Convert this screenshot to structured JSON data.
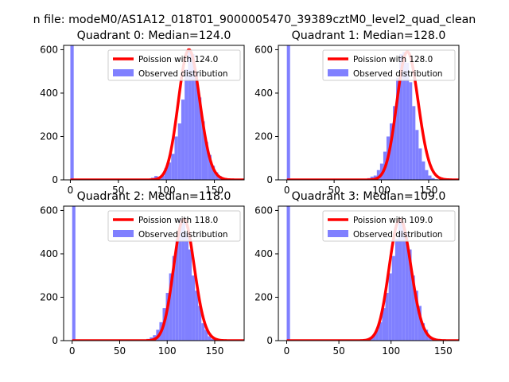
{
  "figure": {
    "suptitle": "n file: modeM0/AS1A12_018T01_9000005470_39389cztM0_level2_quad_clean"
  },
  "chart_data": [
    {
      "type": "bar",
      "title": "Quadrant 0: Median=124.0",
      "xlim": [
        -7,
        181
      ],
      "ylim": [
        0,
        620
      ],
      "xticks": [
        0,
        50,
        100,
        150
      ],
      "yticks": [
        0,
        200,
        400,
        600
      ],
      "legend_position": "top-right",
      "spike": {
        "x": 0,
        "value": 620
      },
      "bins": {
        "start": 0,
        "width": 3.5,
        "values": [
          620,
          0,
          0,
          0,
          0,
          0,
          0,
          0,
          0,
          0,
          0,
          0,
          0,
          0,
          0,
          0,
          0,
          0,
          0,
          0,
          0,
          0,
          1,
          2,
          10,
          18,
          10,
          20,
          55,
          80,
          120,
          200,
          260,
          370,
          510,
          600,
          580,
          500,
          380,
          270,
          175,
          115,
          65,
          35,
          18,
          5,
          5,
          3,
          1,
          0,
          0
        ]
      },
      "poisson": {
        "mean": 124.0
      },
      "series": [
        {
          "name": "Poission with 124.0",
          "color": "#ff0000"
        },
        {
          "name": "Observed distribution",
          "color": "#8080ff"
        }
      ]
    },
    {
      "type": "bar",
      "title": "Quadrant 1: Median=128.0",
      "xlim": [
        -9,
        182
      ],
      "ylim": [
        0,
        620
      ],
      "xticks": [
        0,
        50,
        100,
        150
      ],
      "yticks": [
        0,
        200,
        400,
        600
      ],
      "legend_position": "top-right",
      "spike": {
        "x": 0,
        "value": 620
      },
      "bins": {
        "start": 0,
        "width": 3.4,
        "values": [
          620,
          0,
          0,
          0,
          0,
          0,
          0,
          0,
          0,
          0,
          0,
          0,
          0,
          0,
          0,
          0,
          0,
          0,
          0,
          0,
          0,
          0,
          0,
          0,
          2,
          8,
          15,
          20,
          45,
          75,
          130,
          200,
          260,
          340,
          470,
          580,
          590,
          540,
          450,
          340,
          230,
          145,
          85,
          45,
          20,
          8,
          3,
          1,
          0,
          0,
          0
        ]
      },
      "poisson": {
        "mean": 128.0
      },
      "series": [
        {
          "name": "Poission with 128.0",
          "color": "#ff0000"
        },
        {
          "name": "Observed distribution",
          "color": "#8080ff"
        }
      ]
    },
    {
      "type": "bar",
      "title": "Quadrant 2: Median=118.0",
      "xlim": [
        -9,
        181
      ],
      "ylim": [
        0,
        620
      ],
      "xticks": [
        0,
        50,
        100,
        150
      ],
      "yticks": [
        0,
        200,
        400,
        600
      ],
      "legend_position": "top-right",
      "spike": {
        "x": 0,
        "value": 620
      },
      "bins": {
        "start": 0,
        "width": 3.4,
        "values": [
          620,
          0,
          0,
          0,
          0,
          0,
          0,
          0,
          0,
          0,
          0,
          0,
          0,
          0,
          0,
          0,
          0,
          0,
          0,
          0,
          0,
          2,
          4,
          8,
          15,
          25,
          50,
          85,
          150,
          220,
          310,
          390,
          470,
          560,
          545,
          500,
          420,
          300,
          230,
          160,
          80,
          50,
          20,
          8,
          3,
          1,
          0,
          0,
          0,
          0,
          0
        ]
      },
      "poisson": {
        "mean": 118.0
      },
      "series": [
        {
          "name": "Poission with 118.0",
          "color": "#ff0000"
        },
        {
          "name": "Observed distribution",
          "color": "#8080ff"
        }
      ]
    },
    {
      "type": "bar",
      "title": "Quadrant 3: Median=109.0",
      "xlim": [
        -8,
        165
      ],
      "ylim": [
        0,
        620
      ],
      "xticks": [
        0,
        50,
        100,
        150
      ],
      "yticks": [
        0,
        200,
        400,
        600
      ],
      "legend_position": "top-right",
      "spike": {
        "x": 0,
        "value": 620
      },
      "bins": {
        "start": 0,
        "width": 3.15,
        "values": [
          620,
          0,
          0,
          0,
          0,
          0,
          0,
          0,
          0,
          0,
          0,
          0,
          0,
          0,
          0,
          0,
          0,
          0,
          0,
          0,
          0,
          0,
          2,
          4,
          8,
          15,
          25,
          50,
          85,
          150,
          220,
          310,
          390,
          470,
          560,
          545,
          500,
          420,
          300,
          230,
          160,
          80,
          50,
          20,
          8,
          3,
          1,
          0,
          0,
          0
        ]
      },
      "poisson": {
        "mean": 109.0
      },
      "series": [
        {
          "name": "Poission with 109.0",
          "color": "#ff0000"
        },
        {
          "name": "Observed distribution",
          "color": "#8080ff"
        }
      ]
    }
  ]
}
